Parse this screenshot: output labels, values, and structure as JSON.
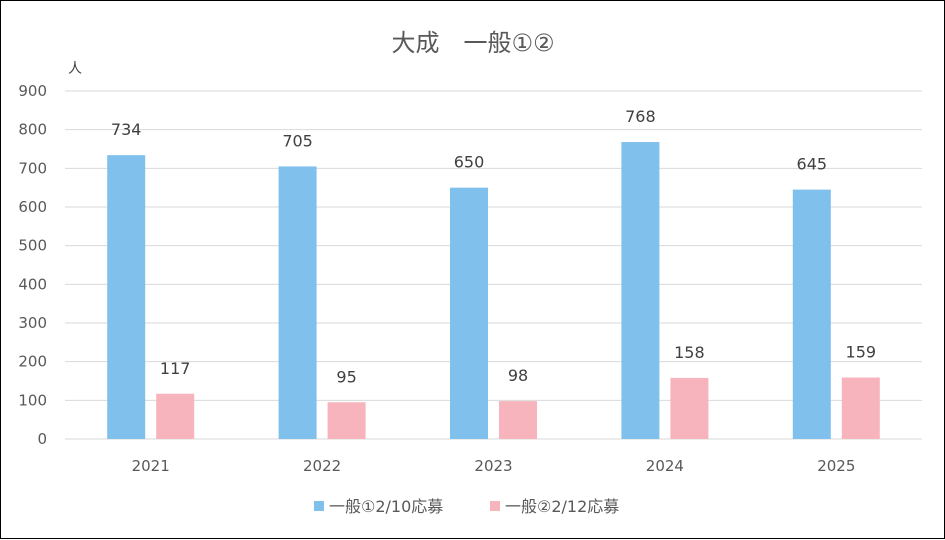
{
  "chart_data": {
    "type": "bar",
    "title": "大成　一般①②",
    "ylabel": "人",
    "xlabel": "",
    "categories": [
      "2021",
      "2022",
      "2023",
      "2024",
      "2025"
    ],
    "series": [
      {
        "name": "一般①2/10応募",
        "values": [
          734,
          705,
          650,
          768,
          645
        ],
        "color": "#7fc1ec"
      },
      {
        "name": "一般②2/12応募",
        "values": [
          117,
          95,
          98,
          158,
          159
        ],
        "color": "#f8b4bc"
      }
    ],
    "ylim": [
      0,
      900
    ],
    "yticks": [
      0,
      100,
      200,
      300,
      400,
      500,
      600,
      700,
      800,
      900
    ],
    "grid": true,
    "legend": "bottom",
    "data_labels": true
  }
}
